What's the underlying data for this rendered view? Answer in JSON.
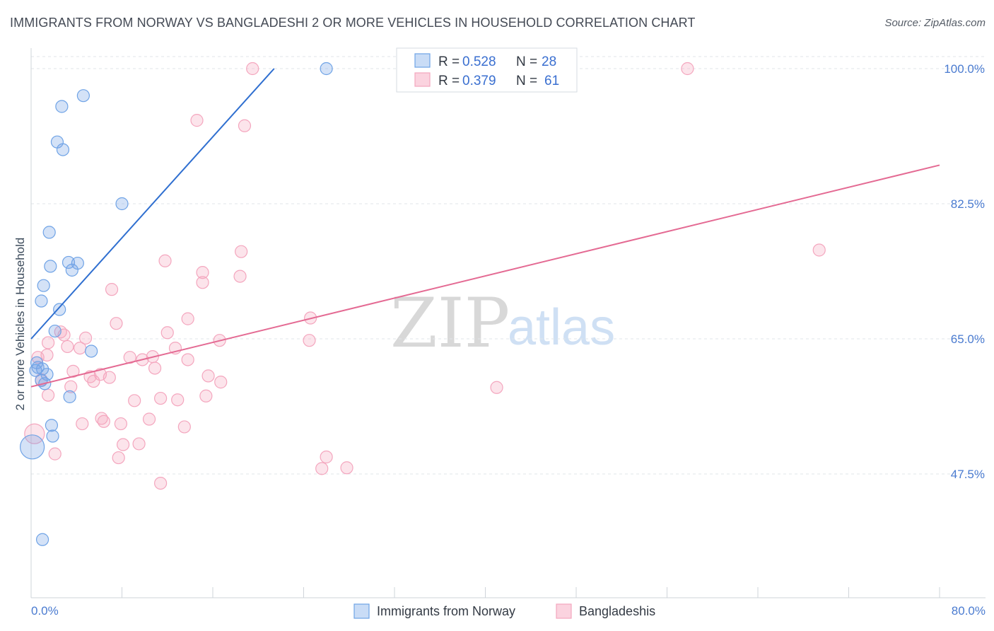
{
  "title": "IMMIGRANTS FROM NORWAY VS BANGLADESHI 2 OR MORE VEHICLES IN HOUSEHOLD CORRELATION CHART",
  "source": "Source: ZipAtlas.com",
  "watermark": {
    "zip": "ZIP",
    "atlas": "atlas"
  },
  "colors": {
    "blue": "#6fa3e6",
    "blue_line": "#2f6fd0",
    "pink": "#f4a6be",
    "pink_line": "#e46a93",
    "axis_text": "#4a7bd0"
  },
  "legend": {
    "r_label": "R =",
    "n_label": "N =",
    "rows": [
      {
        "r": "0.528",
        "n": "28",
        "series": "blue"
      },
      {
        "r": "0.379",
        "n": "61",
        "series": "pink"
      }
    ]
  },
  "chart_data": {
    "type": "scatter",
    "title": "IMMIGRANTS FROM NORWAY VS BANGLADESHI 2 OR MORE VEHICLES IN HOUSEHOLD CORRELATION CHART",
    "xlabel": "",
    "ylabel": "2 or more Vehicles in Household",
    "xlim": [
      0,
      80
    ],
    "ylim": [
      32,
      102
    ],
    "x_tick_labels": [
      "0.0%",
      "80.0%"
    ],
    "y_ticks": [
      47.5,
      65.0,
      82.5,
      100.0
    ],
    "y_tick_labels": [
      "47.5%",
      "65.0%",
      "82.5%",
      "100.0%"
    ],
    "grid": true,
    "series": [
      {
        "name": "Immigrants from Norway",
        "color": "blue",
        "points": [
          [
            2.7,
            95.1
          ],
          [
            4.6,
            96.5
          ],
          [
            2.3,
            90.5
          ],
          [
            2.8,
            89.5
          ],
          [
            8.0,
            82.5
          ],
          [
            1.6,
            78.8
          ],
          [
            1.7,
            74.4
          ],
          [
            3.3,
            74.9
          ],
          [
            4.1,
            74.8
          ],
          [
            3.6,
            73.9
          ],
          [
            1.1,
            71.9
          ],
          [
            0.9,
            69.9
          ],
          [
            2.5,
            68.8
          ],
          [
            2.1,
            66.0
          ],
          [
            5.3,
            63.4
          ],
          [
            0.5,
            61.9
          ],
          [
            0.6,
            61.3
          ],
          [
            1.0,
            61.1
          ],
          [
            0.4,
            60.9
          ],
          [
            1.4,
            60.4
          ],
          [
            0.9,
            59.6
          ],
          [
            1.2,
            59.2
          ],
          [
            3.4,
            57.5
          ],
          [
            1.8,
            53.8
          ],
          [
            1.9,
            52.4
          ],
          [
            0.1,
            51.0
          ],
          [
            26.0,
            100.0
          ],
          [
            1.0,
            39.0
          ]
        ],
        "sizes_note": "one larger point at 0.1 / 51.0",
        "trend": {
          "x1": 0.0,
          "y1": 65.0,
          "x2": 21.4,
          "y2": 100.0
        }
      },
      {
        "name": "Bangladeshis",
        "color": "pink",
        "points": [
          [
            19.5,
            100.0
          ],
          [
            57.8,
            100.0
          ],
          [
            14.6,
            93.3
          ],
          [
            18.8,
            92.6
          ],
          [
            11.8,
            75.1
          ],
          [
            18.5,
            76.3
          ],
          [
            15.1,
            73.6
          ],
          [
            15.1,
            72.3
          ],
          [
            18.4,
            73.1
          ],
          [
            69.4,
            76.5
          ],
          [
            7.1,
            71.4
          ],
          [
            13.8,
            67.6
          ],
          [
            24.6,
            67.7
          ],
          [
            7.5,
            67.0
          ],
          [
            2.6,
            65.9
          ],
          [
            2.9,
            65.5
          ],
          [
            12.0,
            65.8
          ],
          [
            4.8,
            65.1
          ],
          [
            16.6,
            64.8
          ],
          [
            24.5,
            64.8
          ],
          [
            1.5,
            64.5
          ],
          [
            3.2,
            64.0
          ],
          [
            4.3,
            63.8
          ],
          [
            12.7,
            63.8
          ],
          [
            1.4,
            62.9
          ],
          [
            0.6,
            62.6
          ],
          [
            8.7,
            62.6
          ],
          [
            10.7,
            62.7
          ],
          [
            9.8,
            62.3
          ],
          [
            13.8,
            62.3
          ],
          [
            10.9,
            61.2
          ],
          [
            3.7,
            60.8
          ],
          [
            6.1,
            60.4
          ],
          [
            5.2,
            60.1
          ],
          [
            6.9,
            60.0
          ],
          [
            15.6,
            60.2
          ],
          [
            5.5,
            59.5
          ],
          [
            16.7,
            59.4
          ],
          [
            0.9,
            59.7
          ],
          [
            3.5,
            58.8
          ],
          [
            41.0,
            58.7
          ],
          [
            1.5,
            57.7
          ],
          [
            9.1,
            57.0
          ],
          [
            11.4,
            57.3
          ],
          [
            12.9,
            57.1
          ],
          [
            15.4,
            57.6
          ],
          [
            6.2,
            54.7
          ],
          [
            6.4,
            54.3
          ],
          [
            10.4,
            54.6
          ],
          [
            4.5,
            54.0
          ],
          [
            7.9,
            54.0
          ],
          [
            13.5,
            53.6
          ],
          [
            0.3,
            52.7
          ],
          [
            8.1,
            51.3
          ],
          [
            9.5,
            51.4
          ],
          [
            2.1,
            50.1
          ],
          [
            7.7,
            49.6
          ],
          [
            26.0,
            49.7
          ],
          [
            25.6,
            48.2
          ],
          [
            27.8,
            48.3
          ],
          [
            11.4,
            46.3
          ]
        ],
        "sizes_note": "one larger point at 0.3 / 52.7",
        "trend": {
          "x1": 0.0,
          "y1": 58.8,
          "x2": 80.0,
          "y2": 87.5
        }
      }
    ],
    "bottom_legend": [
      "Immigrants from Norway",
      "Bangladeshis"
    ]
  }
}
